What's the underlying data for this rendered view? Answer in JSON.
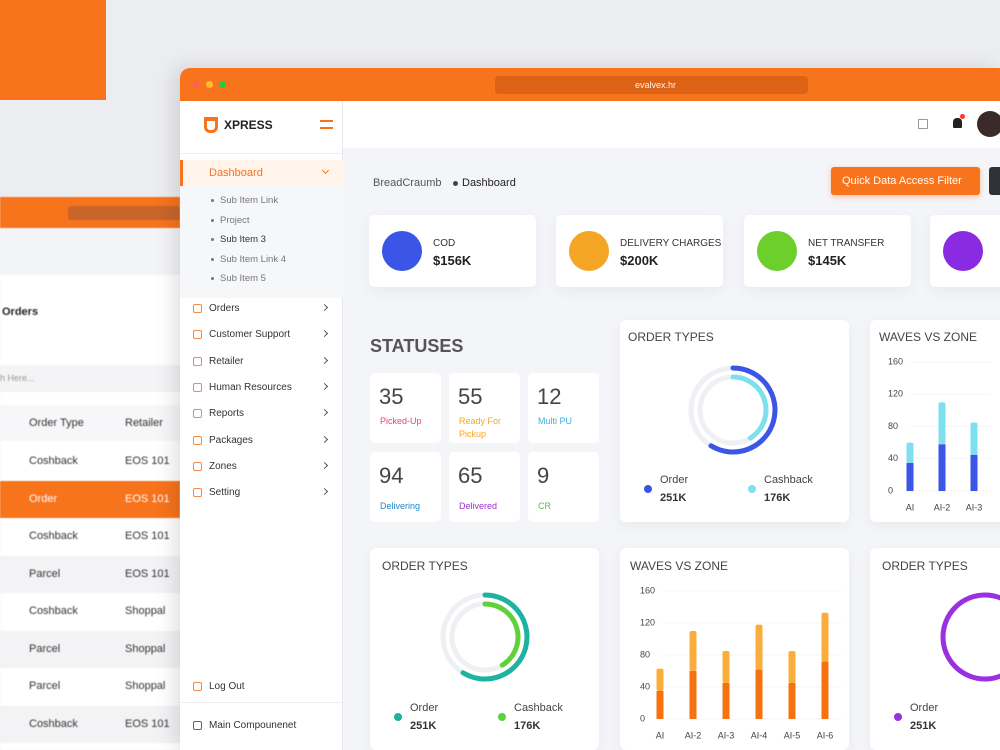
{
  "back_window": {
    "title": "Orders",
    "search_placeholder": "h Here...",
    "headers": [
      "Order Type",
      "Retailer"
    ],
    "rows": [
      [
        "Coshback",
        "EOS 101"
      ],
      [
        "Order",
        "EOS 101"
      ],
      [
        "Coshback",
        "EOS 101"
      ],
      [
        "Parcel",
        "EOS 101"
      ],
      [
        "Coshback",
        "Shoppal"
      ],
      [
        "Parcel",
        "Shoppal"
      ],
      [
        "Parcel",
        "Shoppal"
      ],
      [
        "Coshback",
        "EOS 101"
      ]
    ]
  },
  "browser": {
    "url": "evalvex.hr"
  },
  "sidebar": {
    "brand": "XPRESS",
    "active": {
      "label": "Dashboard",
      "children": [
        "Sub Item Link",
        "Project",
        "Sub Item 3",
        "Sub Item Link 4",
        "Sub Item 5"
      ]
    },
    "menu": [
      "Orders",
      "Customer Support",
      "Retailer",
      "Human Resources",
      "Reports",
      "Packages",
      "Zones",
      "Setting"
    ],
    "footer": [
      "Log Out",
      "Main Compounenet"
    ]
  },
  "header": {
    "breadcrumb": "BreadCraumb",
    "current": "Dashboard",
    "button": "Quick Data Access Filter"
  },
  "stat_cards": [
    {
      "label": "COD",
      "value": "$156K"
    },
    {
      "label": "DELIVERY CHARGES",
      "value": "$200K"
    },
    {
      "label": "NET TRANSFER",
      "value": "$145K"
    }
  ],
  "statuses": {
    "title": "STATUSES",
    "items": [
      {
        "value": 35,
        "label": "Picked-Up"
      },
      {
        "value": 55,
        "label": "Ready For Pickup"
      },
      {
        "value": 12,
        "label": "Multi PU"
      },
      {
        "value": 94,
        "label": "Delivering"
      },
      {
        "value": 65,
        "label": "Delivered"
      },
      {
        "value": 9,
        "label": "CR"
      }
    ]
  },
  "chart_data": [
    {
      "type": "donut",
      "title": "ORDER TYPES",
      "categories": [
        "Order",
        "Cashback"
      ],
      "values": [
        251000,
        176000
      ],
      "value_labels": [
        "251K",
        "176K"
      ],
      "colors": [
        "#3b55e6",
        "#7ee0ef"
      ]
    },
    {
      "type": "stacked_bar",
      "title": "WAVES VS ZONE",
      "categories": [
        "AI",
        "AI-2",
        "AI-3"
      ],
      "series": [
        {
          "color": "#3b55e6",
          "values": [
            35,
            58,
            45
          ]
        },
        {
          "color": "#7ee0ef",
          "values": [
            25,
            52,
            40
          ]
        }
      ],
      "ylim": [
        0,
        160
      ],
      "yticks": [
        0,
        40,
        80,
        120,
        160
      ]
    },
    {
      "type": "donut",
      "title": "ORDER TYPES",
      "categories": [
        "Order",
        "Cashback"
      ],
      "values": [
        251000,
        176000
      ],
      "value_labels": [
        "251K",
        "176K"
      ],
      "colors": [
        "#20b2a0",
        "#5fd13a"
      ]
    },
    {
      "type": "stacked_bar",
      "title": "WAVES VS ZONE",
      "categories": [
        "AI",
        "AI-2",
        "AI-3",
        "AI-4",
        "AI-5",
        "AI-6"
      ],
      "series": [
        {
          "color": "#f7720f",
          "values": [
            35,
            60,
            45,
            62,
            45,
            72
          ]
        },
        {
          "color": "#fbad3c",
          "values": [
            28,
            50,
            40,
            56,
            40,
            61
          ]
        }
      ],
      "ylim": [
        0,
        160
      ],
      "yticks": [
        0,
        40,
        80,
        120,
        160
      ]
    },
    {
      "type": "donut",
      "title": "ORDER TYPES",
      "categories": [
        "Order"
      ],
      "values": [
        251000
      ],
      "value_labels": [
        "251K"
      ],
      "colors": [
        "#9b30e0"
      ]
    }
  ]
}
